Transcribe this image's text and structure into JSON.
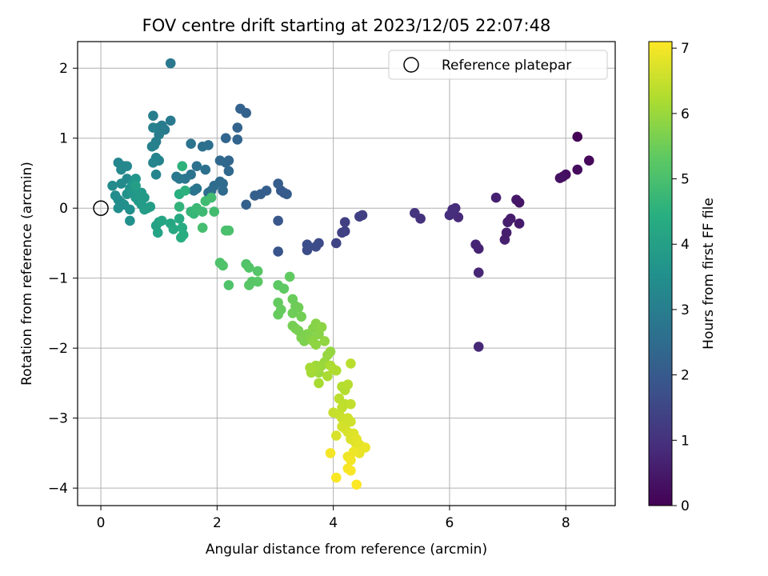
{
  "chart_data": {
    "type": "scatter",
    "title": "FOV centre drift starting at 2023/12/05 22:07:48",
    "xlabel": "Angular distance from reference (arcmin)",
    "ylabel": "Rotation from reference (arcmin)",
    "xlim": [
      -0.4,
      8.85
    ],
    "ylim": [
      -4.25,
      2.38
    ],
    "xticks": [
      0,
      2,
      4,
      6,
      8
    ],
    "yticks": [
      2,
      1,
      0,
      -1,
      -2,
      -3,
      -4
    ],
    "xtick_labels": [
      "0",
      "2",
      "4",
      "6",
      "8"
    ],
    "ytick_labels": [
      "2",
      "1",
      "0",
      "−1",
      "−2",
      "−3",
      "−4"
    ],
    "grid": true,
    "legend": {
      "placement": "top-right",
      "label": "Reference platepar",
      "marker": "open circle"
    },
    "reference_point": {
      "x": 0,
      "y": 0
    },
    "colormap": "viridis",
    "colorbar": {
      "label": "Hours from first FF file",
      "range": [
        0,
        7.1
      ],
      "ticks": [
        0,
        1,
        2,
        3,
        4,
        5,
        6,
        7
      ],
      "tick_labels": [
        "0",
        "1",
        "2",
        "3",
        "4",
        "5",
        "6",
        "7"
      ]
    },
    "points": [
      {
        "x": 8.2,
        "y": 1.02,
        "h": 0.05
      },
      {
        "x": 8.4,
        "y": 0.68,
        "h": 0.15
      },
      {
        "x": 8.2,
        "y": 0.55,
        "h": 0.2
      },
      {
        "x": 8.0,
        "y": 0.48,
        "h": 0.25
      },
      {
        "x": 7.95,
        "y": 0.45,
        "h": 0.3
      },
      {
        "x": 7.9,
        "y": 0.43,
        "h": 0.32
      },
      {
        "x": 7.2,
        "y": 0.08,
        "h": 0.4
      },
      {
        "x": 7.15,
        "y": 0.12,
        "h": 0.45
      },
      {
        "x": 7.2,
        "y": -0.22,
        "h": 0.5
      },
      {
        "x": 7.05,
        "y": -0.15,
        "h": 0.55
      },
      {
        "x": 7.0,
        "y": -0.2,
        "h": 0.58
      },
      {
        "x": 6.98,
        "y": -0.35,
        "h": 0.6
      },
      {
        "x": 6.95,
        "y": -0.45,
        "h": 0.62
      },
      {
        "x": 6.8,
        "y": 0.15,
        "h": 0.65
      },
      {
        "x": 6.5,
        "y": -0.58,
        "h": 0.7
      },
      {
        "x": 6.45,
        "y": -0.52,
        "h": 0.72
      },
      {
        "x": 6.5,
        "y": -0.92,
        "h": 0.75
      },
      {
        "x": 6.5,
        "y": -1.98,
        "h": 0.78
      },
      {
        "x": 6.15,
        "y": -0.13,
        "h": 0.85
      },
      {
        "x": 6.1,
        "y": 0.0,
        "h": 0.88
      },
      {
        "x": 6.05,
        "y": -0.02,
        "h": 0.9
      },
      {
        "x": 6.0,
        "y": -0.1,
        "h": 0.92
      },
      {
        "x": 5.5,
        "y": -0.15,
        "h": 1.0
      },
      {
        "x": 5.4,
        "y": -0.07,
        "h": 1.05
      },
      {
        "x": 4.5,
        "y": -0.1,
        "h": 1.3
      },
      {
        "x": 4.45,
        "y": -0.12,
        "h": 1.32
      },
      {
        "x": 4.2,
        "y": -0.2,
        "h": 1.35
      },
      {
        "x": 4.2,
        "y": -0.33,
        "h": 1.38
      },
      {
        "x": 4.15,
        "y": -0.35,
        "h": 1.4
      },
      {
        "x": 4.05,
        "y": -0.5,
        "h": 1.45
      },
      {
        "x": 3.75,
        "y": -0.5,
        "h": 1.6
      },
      {
        "x": 3.7,
        "y": -0.55,
        "h": 1.62
      },
      {
        "x": 3.55,
        "y": -0.6,
        "h": 1.65
      },
      {
        "x": 3.55,
        "y": -0.52,
        "h": 1.68
      },
      {
        "x": 3.05,
        "y": -0.62,
        "h": 1.85
      },
      {
        "x": 3.05,
        "y": -0.18,
        "h": 1.9
      },
      {
        "x": 3.1,
        "y": 0.25,
        "h": 2.0
      },
      {
        "x": 3.15,
        "y": 0.22,
        "h": 2.02
      },
      {
        "x": 3.2,
        "y": 0.2,
        "h": 2.05
      },
      {
        "x": 3.05,
        "y": 0.35,
        "h": 2.08
      },
      {
        "x": 2.85,
        "y": 0.25,
        "h": 2.1
      },
      {
        "x": 2.75,
        "y": 0.2,
        "h": 2.12
      },
      {
        "x": 2.65,
        "y": 0.18,
        "h": 2.15
      },
      {
        "x": 2.5,
        "y": 0.05,
        "h": 2.18
      },
      {
        "x": 2.5,
        "y": 1.36,
        "h": 2.2
      },
      {
        "x": 2.4,
        "y": 1.42,
        "h": 2.22
      },
      {
        "x": 2.35,
        "y": 1.15,
        "h": 2.25
      },
      {
        "x": 2.35,
        "y": 0.98,
        "h": 2.28
      },
      {
        "x": 2.15,
        "y": 1.0,
        "h": 2.3
      },
      {
        "x": 2.2,
        "y": 0.68,
        "h": 2.32
      },
      {
        "x": 2.15,
        "y": 0.65,
        "h": 2.35
      },
      {
        "x": 2.2,
        "y": 0.53,
        "h": 2.38
      },
      {
        "x": 2.05,
        "y": 0.68,
        "h": 2.4
      },
      {
        "x": 2.1,
        "y": 0.35,
        "h": 2.42
      },
      {
        "x": 2.1,
        "y": 0.25,
        "h": 2.45
      },
      {
        "x": 2.05,
        "y": 0.38,
        "h": 2.48
      },
      {
        "x": 1.95,
        "y": 0.32,
        "h": 2.5
      },
      {
        "x": 1.9,
        "y": 0.25,
        "h": 2.52
      },
      {
        "x": 1.85,
        "y": 0.22,
        "h": 2.55
      },
      {
        "x": 1.85,
        "y": 0.9,
        "h": 2.58
      },
      {
        "x": 1.75,
        "y": 0.88,
        "h": 2.6
      },
      {
        "x": 1.8,
        "y": 0.55,
        "h": 2.62
      },
      {
        "x": 1.65,
        "y": 0.6,
        "h": 2.65
      },
      {
        "x": 1.55,
        "y": 0.48,
        "h": 2.68
      },
      {
        "x": 1.55,
        "y": 0.92,
        "h": 2.7
      },
      {
        "x": 1.65,
        "y": 0.28,
        "h": 2.72
      },
      {
        "x": 1.6,
        "y": 0.25,
        "h": 2.75
      },
      {
        "x": 1.45,
        "y": 0.42,
        "h": 2.78
      },
      {
        "x": 1.35,
        "y": 0.42,
        "h": 2.8
      },
      {
        "x": 1.3,
        "y": 0.45,
        "h": 2.82
      },
      {
        "x": 1.2,
        "y": 2.07,
        "h": 2.85
      },
      {
        "x": 1.2,
        "y": 1.25,
        "h": 2.88
      },
      {
        "x": 1.1,
        "y": 1.12,
        "h": 2.9
      },
      {
        "x": 1.05,
        "y": 1.18,
        "h": 2.92
      },
      {
        "x": 1.0,
        "y": 1.15,
        "h": 2.95
      },
      {
        "x": 1.0,
        "y": 1.05,
        "h": 2.98
      },
      {
        "x": 0.95,
        "y": 0.95,
        "h": 3.0
      },
      {
        "x": 0.9,
        "y": 1.32,
        "h": 3.02
      },
      {
        "x": 0.9,
        "y": 1.15,
        "h": 3.05
      },
      {
        "x": 0.92,
        "y": 0.9,
        "h": 3.08
      },
      {
        "x": 0.88,
        "y": 0.88,
        "h": 3.1
      },
      {
        "x": 0.95,
        "y": 0.72,
        "h": 3.12
      },
      {
        "x": 1.0,
        "y": 0.68,
        "h": 3.15
      },
      {
        "x": 0.9,
        "y": 0.65,
        "h": 3.18
      },
      {
        "x": 0.95,
        "y": 0.48,
        "h": 3.2
      },
      {
        "x": 0.4,
        "y": 0.6,
        "h": 3.22
      },
      {
        "x": 0.3,
        "y": 0.65,
        "h": 3.25
      },
      {
        "x": 0.35,
        "y": 0.55,
        "h": 3.28
      },
      {
        "x": 0.45,
        "y": 0.6,
        "h": 3.3
      },
      {
        "x": 0.45,
        "y": 0.42,
        "h": 3.32
      },
      {
        "x": 0.35,
        "y": 0.35,
        "h": 3.35
      },
      {
        "x": 0.2,
        "y": 0.32,
        "h": 3.38
      },
      {
        "x": 0.25,
        "y": 0.18,
        "h": 3.4
      },
      {
        "x": 0.3,
        "y": 0.12,
        "h": 3.42
      },
      {
        "x": 0.35,
        "y": 0.08,
        "h": 3.45
      },
      {
        "x": 0.3,
        "y": 0.0,
        "h": 3.48
      },
      {
        "x": 0.4,
        "y": 0.05,
        "h": 3.5
      },
      {
        "x": 0.5,
        "y": -0.02,
        "h": 3.52
      },
      {
        "x": 0.5,
        "y": -0.18,
        "h": 3.55
      },
      {
        "x": 0.45,
        "y": 0.2,
        "h": 3.6
      },
      {
        "x": 0.5,
        "y": 0.28,
        "h": 3.62
      },
      {
        "x": 0.55,
        "y": 0.35,
        "h": 3.65
      },
      {
        "x": 0.6,
        "y": 0.42,
        "h": 3.7
      },
      {
        "x": 0.55,
        "y": 0.22,
        "h": 3.72
      },
      {
        "x": 0.6,
        "y": 0.15,
        "h": 3.75
      },
      {
        "x": 0.65,
        "y": 0.1,
        "h": 3.78
      },
      {
        "x": 0.7,
        "y": 0.22,
        "h": 3.8
      },
      {
        "x": 0.75,
        "y": 0.15,
        "h": 3.82
      },
      {
        "x": 0.7,
        "y": 0.05,
        "h": 3.85
      },
      {
        "x": 0.8,
        "y": 0.0,
        "h": 3.88
      },
      {
        "x": 0.75,
        "y": -0.02,
        "h": 3.9
      },
      {
        "x": 0.85,
        "y": 0.02,
        "h": 3.92
      },
      {
        "x": 0.6,
        "y": 0.32,
        "h": 3.95
      },
      {
        "x": 1.0,
        "y": -0.2,
        "h": 4.0
      },
      {
        "x": 0.95,
        "y": -0.25,
        "h": 4.05
      },
      {
        "x": 0.98,
        "y": -0.35,
        "h": 4.1
      },
      {
        "x": 1.05,
        "y": -0.18,
        "h": 4.15
      },
      {
        "x": 1.2,
        "y": -0.22,
        "h": 4.2
      },
      {
        "x": 1.25,
        "y": -0.3,
        "h": 4.25
      },
      {
        "x": 1.35,
        "y": -0.15,
        "h": 4.3
      },
      {
        "x": 1.4,
        "y": -0.28,
        "h": 4.35
      },
      {
        "x": 1.42,
        "y": -0.38,
        "h": 4.38
      },
      {
        "x": 1.38,
        "y": -0.42,
        "h": 4.4
      },
      {
        "x": 1.35,
        "y": 0.2,
        "h": 4.45
      },
      {
        "x": 1.45,
        "y": 0.25,
        "h": 4.5
      },
      {
        "x": 1.4,
        "y": 0.6,
        "h": 4.55
      },
      {
        "x": 1.35,
        "y": 0.02,
        "h": 4.6
      },
      {
        "x": 1.55,
        "y": -0.05,
        "h": 4.65
      },
      {
        "x": 1.6,
        "y": -0.08,
        "h": 4.7
      },
      {
        "x": 1.65,
        "y": 0.0,
        "h": 4.75
      },
      {
        "x": 1.75,
        "y": -0.05,
        "h": 4.8
      },
      {
        "x": 1.8,
        "y": 0.1,
        "h": 4.85
      },
      {
        "x": 1.9,
        "y": 0.15,
        "h": 4.88
      },
      {
        "x": 1.95,
        "y": -0.05,
        "h": 4.9
      },
      {
        "x": 1.75,
        "y": -0.28,
        "h": 4.95
      },
      {
        "x": 2.15,
        "y": -0.32,
        "h": 5.0
      },
      {
        "x": 2.2,
        "y": -0.32,
        "h": 5.02
      },
      {
        "x": 2.05,
        "y": -0.78,
        "h": 5.05
      },
      {
        "x": 2.1,
        "y": -0.82,
        "h": 5.08
      },
      {
        "x": 2.2,
        "y": -1.1,
        "h": 5.1
      },
      {
        "x": 2.5,
        "y": -0.8,
        "h": 5.12
      },
      {
        "x": 2.55,
        "y": -0.85,
        "h": 5.15
      },
      {
        "x": 2.7,
        "y": -0.9,
        "h": 5.18
      },
      {
        "x": 2.6,
        "y": -1.05,
        "h": 5.2
      },
      {
        "x": 2.55,
        "y": -1.1,
        "h": 5.22
      },
      {
        "x": 2.7,
        "y": -1.05,
        "h": 5.25
      },
      {
        "x": 3.05,
        "y": -1.1,
        "h": 5.3
      },
      {
        "x": 3.15,
        "y": -1.15,
        "h": 5.32
      },
      {
        "x": 3.25,
        "y": -0.98,
        "h": 5.35
      },
      {
        "x": 3.05,
        "y": -1.35,
        "h": 5.38
      },
      {
        "x": 3.1,
        "y": -1.45,
        "h": 5.4
      },
      {
        "x": 3.05,
        "y": -1.52,
        "h": 5.42
      },
      {
        "x": 3.3,
        "y": -1.3,
        "h": 5.45
      },
      {
        "x": 3.35,
        "y": -1.4,
        "h": 5.48
      },
      {
        "x": 3.3,
        "y": -1.5,
        "h": 5.5
      },
      {
        "x": 3.4,
        "y": -1.42,
        "h": 5.52
      },
      {
        "x": 3.45,
        "y": -1.55,
        "h": 5.55
      },
      {
        "x": 3.3,
        "y": -1.68,
        "h": 5.58
      },
      {
        "x": 3.35,
        "y": -1.72,
        "h": 5.6
      },
      {
        "x": 3.4,
        "y": -1.75,
        "h": 5.62
      },
      {
        "x": 3.45,
        "y": -1.85,
        "h": 5.65
      },
      {
        "x": 3.5,
        "y": -1.9,
        "h": 5.68
      },
      {
        "x": 3.55,
        "y": -1.8,
        "h": 5.7
      },
      {
        "x": 3.6,
        "y": -1.85,
        "h": 5.72
      },
      {
        "x": 3.65,
        "y": -1.72,
        "h": 5.75
      },
      {
        "x": 3.7,
        "y": -1.65,
        "h": 5.78
      },
      {
        "x": 3.75,
        "y": -1.8,
        "h": 5.8
      },
      {
        "x": 3.8,
        "y": -1.7,
        "h": 5.82
      },
      {
        "x": 3.65,
        "y": -1.9,
        "h": 5.85
      },
      {
        "x": 3.7,
        "y": -1.95,
        "h": 5.88
      },
      {
        "x": 3.85,
        "y": -1.9,
        "h": 5.9
      },
      {
        "x": 3.95,
        "y": -2.05,
        "h": 5.92
      },
      {
        "x": 3.9,
        "y": -2.1,
        "h": 5.95
      },
      {
        "x": 3.85,
        "y": -2.2,
        "h": 5.98
      },
      {
        "x": 3.8,
        "y": -2.25,
        "h": 6.0
      },
      {
        "x": 3.75,
        "y": -2.35,
        "h": 6.02
      },
      {
        "x": 3.7,
        "y": -2.25,
        "h": 6.05
      },
      {
        "x": 3.65,
        "y": -2.3,
        "h": 6.08
      },
      {
        "x": 3.62,
        "y": -2.35,
        "h": 6.1
      },
      {
        "x": 3.6,
        "y": -2.28,
        "h": 6.12
      },
      {
        "x": 3.75,
        "y": -2.5,
        "h": 6.15
      },
      {
        "x": 3.9,
        "y": -2.4,
        "h": 6.18
      },
      {
        "x": 3.95,
        "y": -2.25,
        "h": 6.2
      },
      {
        "x": 4.0,
        "y": -2.3,
        "h": 6.22
      },
      {
        "x": 4.05,
        "y": -2.32,
        "h": 6.25
      },
      {
        "x": 4.15,
        "y": -2.55,
        "h": 6.28
      },
      {
        "x": 4.2,
        "y": -2.6,
        "h": 6.3
      },
      {
        "x": 4.25,
        "y": -2.52,
        "h": 6.32
      },
      {
        "x": 4.3,
        "y": -2.22,
        "h": 6.35
      },
      {
        "x": 4.1,
        "y": -2.72,
        "h": 6.38
      },
      {
        "x": 4.2,
        "y": -2.8,
        "h": 6.4
      },
      {
        "x": 4.15,
        "y": -2.85,
        "h": 6.42
      },
      {
        "x": 4.3,
        "y": -2.8,
        "h": 6.45
      },
      {
        "x": 4.0,
        "y": -2.92,
        "h": 6.48
      },
      {
        "x": 4.1,
        "y": -2.95,
        "h": 6.5
      },
      {
        "x": 4.15,
        "y": -3.0,
        "h": 6.52
      },
      {
        "x": 4.2,
        "y": -3.05,
        "h": 6.55
      },
      {
        "x": 4.25,
        "y": -3.0,
        "h": 6.58
      },
      {
        "x": 4.3,
        "y": -3.05,
        "h": 6.6
      },
      {
        "x": 4.15,
        "y": -3.12,
        "h": 6.62
      },
      {
        "x": 4.2,
        "y": -3.15,
        "h": 6.65
      },
      {
        "x": 4.25,
        "y": -3.2,
        "h": 6.68
      },
      {
        "x": 4.05,
        "y": -3.25,
        "h": 6.7
      },
      {
        "x": 4.3,
        "y": -3.3,
        "h": 6.72
      },
      {
        "x": 4.35,
        "y": -3.22,
        "h": 6.75
      },
      {
        "x": 4.38,
        "y": -3.35,
        "h": 6.78
      },
      {
        "x": 4.4,
        "y": -3.3,
        "h": 6.8
      },
      {
        "x": 4.45,
        "y": -3.38,
        "h": 6.82
      },
      {
        "x": 4.5,
        "y": -3.42,
        "h": 6.85
      },
      {
        "x": 4.45,
        "y": -3.5,
        "h": 6.88
      },
      {
        "x": 4.55,
        "y": -3.42,
        "h": 6.9
      },
      {
        "x": 4.35,
        "y": -3.48,
        "h": 6.92
      },
      {
        "x": 4.25,
        "y": -3.55,
        "h": 6.95
      },
      {
        "x": 4.3,
        "y": -3.6,
        "h": 6.98
      },
      {
        "x": 3.95,
        "y": -3.5,
        "h": 7.0
      },
      {
        "x": 4.25,
        "y": -3.72,
        "h": 7.02
      },
      {
        "x": 4.3,
        "y": -3.75,
        "h": 7.04
      },
      {
        "x": 4.05,
        "y": -3.85,
        "h": 7.06
      },
      {
        "x": 4.4,
        "y": -3.95,
        "h": 7.08
      }
    ]
  }
}
